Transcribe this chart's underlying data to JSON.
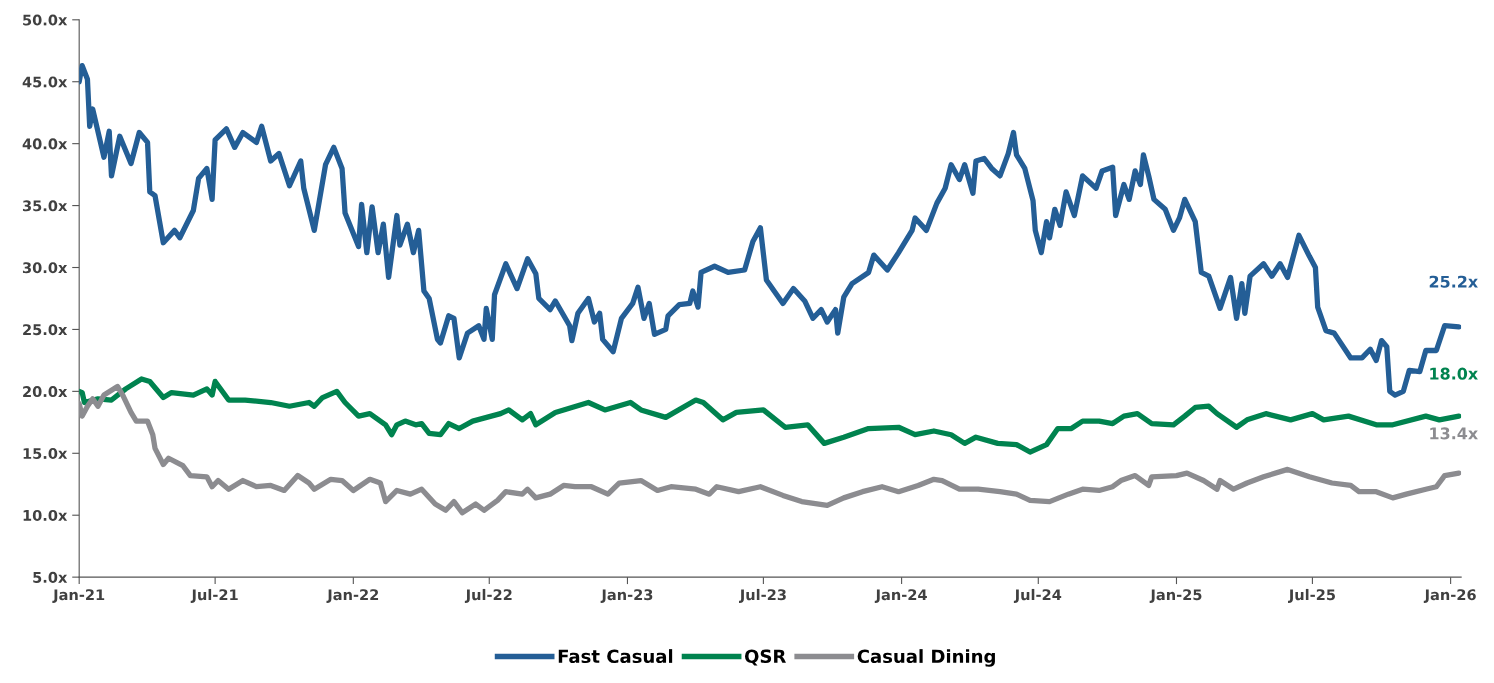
{
  "chart_data": {
    "type": "line",
    "xlim": [
      "2021-01-01",
      "2026-01-15"
    ],
    "xticks": [
      {
        "value": "2021-01-01",
        "label": "Jan-21"
      },
      {
        "value": "2021-07-01",
        "label": "Jul-21"
      },
      {
        "value": "2022-01-01",
        "label": "Jan-22"
      },
      {
        "value": "2022-07-01",
        "label": "Jul-22"
      },
      {
        "value": "2023-01-01",
        "label": "Jan-23"
      },
      {
        "value": "2023-07-01",
        "label": "Jul-23"
      },
      {
        "value": "2024-01-01",
        "label": "Jan-24"
      },
      {
        "value": "2024-07-01",
        "label": "Jul-24"
      },
      {
        "value": "2025-01-01",
        "label": "Jan-25"
      },
      {
        "value": "2025-07-01",
        "label": "Jul-25"
      },
      {
        "value": "2026-01-01",
        "label": "Jan-26"
      }
    ],
    "ylim": [
      5,
      50
    ],
    "yticks": [
      {
        "value": 5,
        "label": "5.0x"
      },
      {
        "value": 10,
        "label": "10.0x"
      },
      {
        "value": 15,
        "label": "15.0x"
      },
      {
        "value": 20,
        "label": "20.0x"
      },
      {
        "value": 25,
        "label": "25.0x"
      },
      {
        "value": 30,
        "label": "30.0x"
      },
      {
        "value": 35,
        "label": "35.0x"
      },
      {
        "value": 40,
        "label": "40.0x"
      },
      {
        "value": 45,
        "label": "45.0x"
      },
      {
        "value": 50,
        "label": "50.0x"
      }
    ],
    "grid": false,
    "legend": "bottom",
    "marker": "none",
    "line_style": "solid",
    "series": [
      {
        "name": "Fast Casual",
        "color": "#245e96",
        "x": [
          "2021-01-01",
          "2021-01-05",
          "2021-01-12",
          "2021-01-15",
          "2021-01-19",
          "2021-02-03",
          "2021-02-10",
          "2021-02-13",
          "2021-02-24",
          "2021-03-11",
          "2021-03-22",
          "2021-04-02",
          "2021-04-05",
          "2021-04-12",
          "2021-04-23",
          "2021-05-08",
          "2021-05-15",
          "2021-06-02",
          "2021-06-09",
          "2021-06-20",
          "2021-06-27",
          "2021-07-01",
          "2021-07-16",
          "2021-07-27",
          "2021-08-07",
          "2021-08-25",
          "2021-09-01",
          "2021-09-13",
          "2021-09-24",
          "2021-10-08",
          "2021-10-23",
          "2021-10-27",
          "2021-11-10",
          "2021-11-25",
          "2021-12-06",
          "2021-12-17",
          "2021-12-21",
          "2022-01-08",
          "2022-01-12",
          "2022-01-19",
          "2022-01-26",
          "2022-02-03",
          "2022-02-10",
          "2022-02-17",
          "2022-02-28",
          "2022-03-04",
          "2022-03-14",
          "2022-03-22",
          "2022-03-29",
          "2022-04-05",
          "2022-04-12",
          "2022-04-23",
          "2022-04-27",
          "2022-05-08",
          "2022-05-15",
          "2022-05-22",
          "2022-06-02",
          "2022-06-17",
          "2022-06-24",
          "2022-06-27",
          "2022-07-05",
          "2022-07-08",
          "2022-07-23",
          "2022-08-07",
          "2022-08-21",
          "2022-09-01",
          "2022-09-05",
          "2022-09-20",
          "2022-09-27",
          "2022-10-16",
          "2022-10-19",
          "2022-10-27",
          "2022-11-10",
          "2022-11-18",
          "2022-11-25",
          "2022-11-29",
          "2022-12-13",
          "2022-12-24",
          "2023-01-08",
          "2023-01-15",
          "2023-01-23",
          "2023-01-30",
          "2023-02-06",
          "2023-02-21",
          "2023-02-24",
          "2023-03-11",
          "2023-03-25",
          "2023-03-29",
          "2023-04-05",
          "2023-04-09",
          "2023-04-27",
          "2023-05-15",
          "2023-06-06",
          "2023-06-17",
          "2023-06-27",
          "2023-07-05",
          "2023-07-27",
          "2023-08-10",
          "2023-08-25",
          "2023-09-05",
          "2023-09-16",
          "2023-09-24",
          "2023-10-05",
          "2023-10-08",
          "2023-10-16",
          "2023-10-27",
          "2023-11-18",
          "2023-11-25",
          "2023-12-13",
          "2023-12-28",
          "2024-01-15",
          "2024-01-19",
          "2024-02-03",
          "2024-02-17",
          "2024-02-28",
          "2024-03-07",
          "2024-03-18",
          "2024-03-25",
          "2024-04-05",
          "2024-04-09",
          "2024-04-20",
          "2024-04-30",
          "2024-05-11",
          "2024-05-22",
          "2024-05-29",
          "2024-06-02",
          "2024-06-13",
          "2024-06-24",
          "2024-06-27",
          "2024-07-05",
          "2024-07-12",
          "2024-07-16",
          "2024-07-23",
          "2024-07-30",
          "2024-08-07",
          "2024-08-18",
          "2024-08-29",
          "2024-09-16",
          "2024-09-24",
          "2024-10-08",
          "2024-10-12",
          "2024-10-23",
          "2024-10-30",
          "2024-11-07",
          "2024-11-14",
          "2024-11-18",
          "2024-11-25",
          "2024-12-02",
          "2024-12-17",
          "2024-12-28",
          "2025-01-05",
          "2025-01-12",
          "2025-01-26",
          "2025-02-03",
          "2025-02-13",
          "2025-02-28",
          "2025-03-14",
          "2025-03-22",
          "2025-03-29",
          "2025-04-02",
          "2025-04-09",
          "2025-04-27",
          "2025-05-08",
          "2025-05-19",
          "2025-05-29",
          "2025-06-13",
          "2025-06-27",
          "2025-07-05",
          "2025-07-08",
          "2025-07-19",
          "2025-07-30",
          "2025-08-21",
          "2025-09-05",
          "2025-09-16",
          "2025-09-24",
          "2025-10-01",
          "2025-10-08",
          "2025-10-12",
          "2025-10-19",
          "2025-10-30",
          "2025-11-07",
          "2025-11-21",
          "2025-11-29",
          "2025-12-13",
          "2025-12-24",
          "2026-01-12"
        ],
        "values": [
          45.0,
          46.3,
          45.2,
          41.4,
          42.8,
          38.9,
          41.0,
          37.4,
          40.6,
          38.4,
          40.9,
          40.1,
          36.1,
          35.8,
          32.0,
          33.0,
          32.4,
          34.6,
          37.2,
          38.0,
          35.5,
          40.3,
          41.2,
          39.7,
          40.9,
          40.1,
          41.4,
          38.6,
          39.2,
          36.6,
          38.6,
          36.4,
          33.0,
          38.3,
          39.7,
          38.0,
          34.4,
          31.7,
          35.1,
          31.2,
          34.9,
          31.2,
          33.5,
          29.2,
          34.2,
          31.8,
          33.5,
          31.2,
          33.0,
          28.1,
          27.5,
          24.2,
          23.9,
          26.1,
          25.9,
          22.7,
          24.7,
          25.3,
          24.2,
          26.7,
          24.2,
          27.8,
          30.3,
          28.3,
          30.7,
          29.5,
          27.5,
          26.6,
          27.3,
          25.3,
          24.1,
          26.3,
          27.5,
          25.6,
          26.3,
          24.2,
          23.2,
          25.9,
          27.1,
          28.4,
          25.9,
          27.1,
          24.6,
          25.0,
          26.1,
          27.0,
          27.1,
          28.1,
          26.8,
          29.6,
          30.1,
          29.6,
          29.8,
          32.1,
          33.2,
          29.0,
          27.1,
          28.3,
          27.3,
          25.9,
          26.6,
          25.6,
          26.6,
          24.7,
          27.6,
          28.7,
          29.6,
          31.0,
          29.8,
          31.2,
          33.0,
          34.0,
          33.0,
          35.2,
          36.4,
          38.3,
          37.1,
          38.3,
          36.0,
          38.6,
          38.8,
          38.0,
          37.4,
          39.2,
          40.9,
          39.1,
          38.0,
          35.4,
          33.0,
          31.2,
          33.7,
          32.4,
          34.7,
          33.4,
          36.1,
          34.2,
          37.4,
          36.4,
          37.8,
          38.1,
          34.2,
          36.7,
          35.5,
          37.8,
          36.7,
          39.1,
          37.4,
          35.5,
          34.7,
          33.0,
          34.0,
          35.5,
          33.7,
          29.6,
          29.3,
          26.7,
          29.2,
          25.9,
          28.7,
          26.3,
          29.3,
          30.3,
          29.3,
          30.3,
          29.2,
          32.6,
          30.9,
          30.0,
          26.8,
          24.9,
          24.7,
          22.7,
          22.7,
          23.4,
          22.5,
          24.1,
          23.6,
          20.0,
          19.7,
          20.0,
          21.7,
          21.6,
          23.3,
          23.3,
          25.3,
          25.2
        ]
      },
      {
        "name": "QSR",
        "color": "#00834f",
        "x": [
          "2021-01-01",
          "2021-01-05",
          "2021-01-08",
          "2021-01-26",
          "2021-02-13",
          "2021-03-04",
          "2021-03-25",
          "2021-04-05",
          "2021-04-23",
          "2021-05-04",
          "2021-06-02",
          "2021-06-20",
          "2021-06-27",
          "2021-07-01",
          "2021-07-19",
          "2021-08-10",
          "2021-09-13",
          "2021-10-08",
          "2021-11-03",
          "2021-11-10",
          "2021-11-21",
          "2021-12-10",
          "2021-12-21",
          "2022-01-08",
          "2022-01-23",
          "2022-02-13",
          "2022-02-21",
          "2022-02-28",
          "2022-03-11",
          "2022-03-25",
          "2022-04-02",
          "2022-04-12",
          "2022-04-27",
          "2022-05-08",
          "2022-05-22",
          "2022-06-09",
          "2022-07-16",
          "2022-07-27",
          "2022-08-14",
          "2022-08-25",
          "2022-09-01",
          "2022-09-27",
          "2022-11-10",
          "2022-12-02",
          "2023-01-05",
          "2023-01-19",
          "2023-02-21",
          "2023-04-02",
          "2023-04-12",
          "2023-05-08",
          "2023-05-26",
          "2023-07-01",
          "2023-07-30",
          "2023-08-29",
          "2023-09-20",
          "2023-10-16",
          "2023-11-18",
          "2023-12-28",
          "2024-01-19",
          "2024-02-13",
          "2024-03-07",
          "2024-03-25",
          "2024-04-09",
          "2024-05-08",
          "2024-06-02",
          "2024-06-20",
          "2024-07-12",
          "2024-07-27",
          "2024-08-14",
          "2024-08-29",
          "2024-09-20",
          "2024-10-08",
          "2024-10-23",
          "2024-11-10",
          "2024-11-29",
          "2024-12-28",
          "2025-01-12",
          "2025-01-26",
          "2025-02-13",
          "2025-02-24",
          "2025-03-22",
          "2025-04-05",
          "2025-04-30",
          "2025-06-02",
          "2025-07-01",
          "2025-07-16",
          "2025-08-18",
          "2025-09-24",
          "2025-10-16",
          "2025-11-29",
          "2025-12-17",
          "2026-01-12"
        ],
        "values": [
          20.0,
          19.9,
          19.1,
          19.4,
          19.3,
          20.2,
          21.0,
          20.8,
          19.5,
          19.9,
          19.7,
          20.2,
          19.7,
          20.8,
          19.3,
          19.3,
          19.1,
          18.8,
          19.1,
          18.8,
          19.5,
          20.0,
          19.1,
          18.0,
          18.2,
          17.3,
          16.5,
          17.3,
          17.6,
          17.3,
          17.4,
          16.6,
          16.5,
          17.4,
          17.0,
          17.6,
          18.2,
          18.5,
          17.7,
          18.2,
          17.3,
          18.3,
          19.1,
          18.5,
          19.1,
          18.5,
          17.9,
          19.3,
          19.1,
          17.7,
          18.3,
          18.5,
          17.1,
          17.3,
          15.8,
          16.3,
          17.0,
          17.1,
          16.5,
          16.8,
          16.5,
          15.8,
          16.3,
          15.8,
          15.7,
          15.1,
          15.7,
          17.0,
          17.0,
          17.6,
          17.6,
          17.4,
          18.0,
          18.2,
          17.4,
          17.3,
          18.0,
          18.7,
          18.8,
          18.2,
          17.1,
          17.7,
          18.2,
          17.7,
          18.2,
          17.7,
          18.0,
          17.3,
          17.3,
          18.0,
          17.7,
          18.0
        ]
      },
      {
        "name": "Casual Dining",
        "color": "#8c8c90",
        "x": [
          "2021-01-01",
          "2021-01-05",
          "2021-01-12",
          "2021-01-19",
          "2021-01-26",
          "2021-02-03",
          "2021-02-21",
          "2021-02-28",
          "2021-03-11",
          "2021-03-18",
          "2021-04-02",
          "2021-04-09",
          "2021-04-12",
          "2021-04-23",
          "2021-04-30",
          "2021-05-19",
          "2021-05-29",
          "2021-06-20",
          "2021-06-27",
          "2021-07-05",
          "2021-07-19",
          "2021-08-07",
          "2021-08-25",
          "2021-09-13",
          "2021-10-01",
          "2021-10-19",
          "2021-11-03",
          "2021-11-10",
          "2021-12-02",
          "2021-12-17",
          "2022-01-01",
          "2022-01-23",
          "2022-02-06",
          "2022-02-13",
          "2022-02-28",
          "2022-03-18",
          "2022-04-02",
          "2022-04-20",
          "2022-05-04",
          "2022-05-15",
          "2022-05-26",
          "2022-06-13",
          "2022-06-24",
          "2022-07-12",
          "2022-07-23",
          "2022-08-14",
          "2022-08-21",
          "2022-09-01",
          "2022-09-20",
          "2022-10-08",
          "2022-10-23",
          "2022-11-14",
          "2022-12-06",
          "2022-12-21",
          "2023-01-19",
          "2023-02-10",
          "2023-02-28",
          "2023-04-02",
          "2023-04-20",
          "2023-04-30",
          "2023-05-29",
          "2023-06-27",
          "2023-07-27",
          "2023-08-21",
          "2023-09-24",
          "2023-10-16",
          "2023-11-10",
          "2023-12-06",
          "2023-12-28",
          "2024-01-23",
          "2024-02-13",
          "2024-02-24",
          "2024-03-18",
          "2024-04-12",
          "2024-05-11",
          "2024-06-02",
          "2024-06-20",
          "2024-07-16",
          "2024-08-10",
          "2024-08-29",
          "2024-09-20",
          "2024-10-08",
          "2024-10-19",
          "2024-11-07",
          "2024-11-25",
          "2024-11-29",
          "2025-01-01",
          "2025-01-15",
          "2025-02-06",
          "2025-02-24",
          "2025-02-28",
          "2025-03-18",
          "2025-04-05",
          "2025-04-27",
          "2025-05-29",
          "2025-06-27",
          "2025-07-27",
          "2025-08-21",
          "2025-09-01",
          "2025-09-24",
          "2025-10-16",
          "2025-11-03",
          "2025-11-29",
          "2025-12-13",
          "2025-12-24",
          "2026-01-12"
        ],
        "values": [
          19.0,
          18.0,
          18.8,
          19.4,
          18.8,
          19.7,
          20.4,
          19.7,
          18.3,
          17.6,
          17.6,
          16.5,
          15.4,
          14.1,
          14.6,
          14.0,
          13.2,
          13.1,
          12.3,
          12.8,
          12.1,
          12.8,
          12.3,
          12.4,
          12.0,
          13.2,
          12.6,
          12.1,
          12.9,
          12.8,
          12.0,
          12.9,
          12.6,
          11.1,
          12.0,
          11.7,
          12.1,
          10.9,
          10.4,
          11.1,
          10.2,
          10.9,
          10.4,
          11.2,
          11.9,
          11.7,
          12.1,
          11.4,
          11.7,
          12.4,
          12.3,
          12.3,
          11.7,
          12.6,
          12.8,
          12.0,
          12.3,
          12.1,
          11.7,
          12.3,
          11.9,
          12.3,
          11.6,
          11.1,
          10.8,
          11.4,
          11.9,
          12.3,
          11.9,
          12.4,
          12.9,
          12.8,
          12.1,
          12.1,
          11.9,
          11.7,
          11.2,
          11.1,
          11.7,
          12.1,
          12.0,
          12.3,
          12.8,
          13.2,
          12.4,
          13.1,
          13.2,
          13.4,
          12.8,
          12.1,
          12.8,
          12.1,
          12.6,
          13.1,
          13.7,
          13.1,
          12.6,
          12.4,
          11.9,
          11.9,
          11.4,
          11.7,
          12.1,
          12.3,
          13.2,
          13.4
        ]
      }
    ],
    "annotations": [
      {
        "text": "25.2x",
        "x": "2026-01-12",
        "y": 25.2
      },
      {
        "text": "18.0x",
        "x": "2026-01-12",
        "y": 18.0
      },
      {
        "text": "13.4x",
        "x": "2026-01-12",
        "y": 13.4
      }
    ]
  }
}
